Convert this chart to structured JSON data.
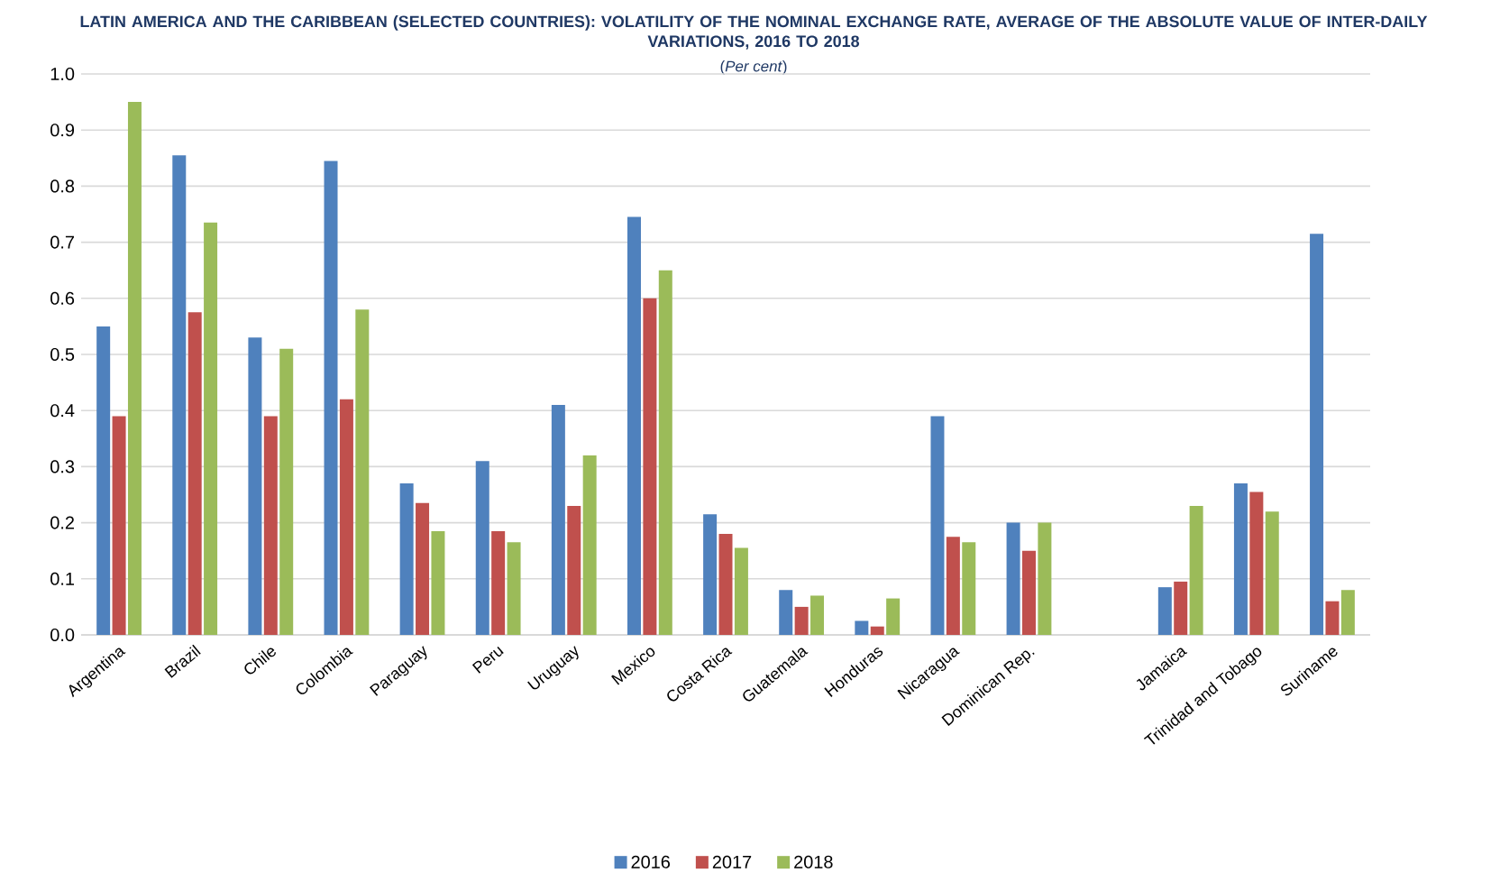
{
  "chart_data": {
    "type": "bar",
    "title": "LATIN AMERICA AND THE CARIBBEAN (SELECTED COUNTRIES): VOLATILITY OF THE NOMINAL EXCHANGE RATE, AVERAGE OF THE ABSOLUTE VALUE OF INTER-DAILY VARIATIONS, 2016 TO 2018",
    "subtitle": "(*Per cent*)",
    "categories": [
      "Argentina",
      "Brazil",
      "Chile",
      "Colombia",
      "Paraguay",
      "Peru",
      "Uruguay",
      "Mexico",
      "Costa Rica",
      "Guatemala",
      "Honduras",
      "Nicaragua",
      "Dominican Rep.",
      null,
      "Jamaica",
      "Trinidad and Tobago",
      "Suriname"
    ],
    "series": [
      {
        "name": "2016",
        "color": "#4f81bd",
        "values": [
          0.55,
          0.855,
          0.53,
          0.845,
          0.27,
          0.31,
          0.41,
          0.745,
          0.215,
          0.08,
          0.025,
          0.39,
          0.2,
          null,
          0.085,
          0.27,
          0.715
        ]
      },
      {
        "name": "2017",
        "color": "#c0504d",
        "values": [
          0.39,
          0.575,
          0.39,
          0.42,
          0.235,
          0.185,
          0.23,
          0.6,
          0.18,
          0.05,
          0.015,
          0.175,
          0.15,
          null,
          0.095,
          0.255,
          0.06
        ]
      },
      {
        "name": "2018",
        "color": "#9bbb59",
        "values": [
          0.95,
          0.735,
          0.51,
          0.58,
          0.185,
          0.165,
          0.32,
          0.65,
          0.155,
          0.07,
          0.065,
          0.165,
          0.2,
          null,
          0.23,
          0.22,
          0.08
        ]
      }
    ],
    "ylim": [
      0,
      1.0
    ],
    "yticks": [
      {
        "value": 0,
        "label": "0.0"
      },
      0.1,
      0.2,
      0.3,
      0.4,
      0.5,
      0.6,
      0.7,
      0.8,
      0.9,
      {
        "value": 1.0,
        "label": "1.0"
      }
    ],
    "grid": "y",
    "legend": "bottom"
  }
}
